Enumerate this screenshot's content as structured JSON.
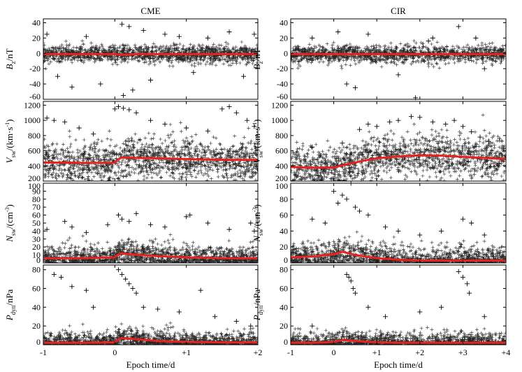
{
  "figure": {
    "column_titles": [
      "CME",
      "CIR"
    ],
    "xlabel": "Epoch time/d",
    "row_labels": [
      {
        "main": "B",
        "sub": "z",
        "tail": "/nT",
        "sup": ""
      },
      {
        "main": "V",
        "sub": "sw",
        "tail": "/(km·s",
        "sup": "-1",
        "close": ")"
      },
      {
        "main": "N",
        "sub": "sw",
        "tail": "/(cm",
        "sup": "-3",
        "close": ")"
      },
      {
        "main": "P",
        "sub": "dyn",
        "tail": "/nPa",
        "sup": ""
      }
    ],
    "colors": {
      "scatter": "#000000",
      "mean_line": "#e8231f"
    }
  },
  "chart_data": [
    {
      "type": "scatter",
      "column": "CME",
      "row": 0,
      "quantity": "Bz (nT)",
      "xlim": [
        -1,
        2
      ],
      "ylim": [
        -60,
        45
      ],
      "xticks": [
        -1,
        0,
        1,
        2
      ],
      "xtick_labels": [
        "-1",
        "0",
        "+1",
        "+2"
      ],
      "yticks": [
        -60,
        -40,
        -20,
        0,
        20,
        40
      ],
      "ytick_labels": [
        "-60",
        "-40",
        "-20",
        "0",
        "20",
        "40"
      ],
      "mean_line": {
        "x": [
          -1,
          -0.5,
          0,
          0.1,
          0.3,
          0.6,
          1,
          1.5,
          2
        ],
        "y": [
          -1,
          -1,
          -1,
          -2,
          -1,
          -1,
          -1,
          -1,
          -1
        ]
      },
      "scatter_core": {
        "center": 0,
        "halfwidth": 10
      },
      "outliers": [
        [
          -0.95,
          25
        ],
        [
          -0.8,
          -30
        ],
        [
          -0.6,
          -44
        ],
        [
          -0.4,
          22
        ],
        [
          -0.2,
          -40
        ],
        [
          0.1,
          38
        ],
        [
          0.12,
          -55
        ],
        [
          0.2,
          35
        ],
        [
          0.25,
          -48
        ],
        [
          0.4,
          30
        ],
        [
          0.5,
          -35
        ],
        [
          0.7,
          25
        ],
        [
          0.9,
          22
        ],
        [
          1.1,
          -25
        ],
        [
          1.3,
          20
        ],
        [
          1.6,
          28
        ],
        [
          1.8,
          -30
        ],
        [
          1.95,
          25
        ]
      ]
    },
    {
      "type": "scatter",
      "column": "CIR",
      "row": 0,
      "quantity": "Bz (nT)",
      "xlim": [
        -1,
        4
      ],
      "ylim": [
        -60,
        45
      ],
      "xticks": [
        -1,
        0,
        1,
        2,
        3,
        4
      ],
      "xtick_labels": [
        "-1",
        "0",
        "+1",
        "+2",
        "+3",
        "+4"
      ],
      "yticks": [
        -60,
        -40,
        -20,
        0,
        20,
        40
      ],
      "ytick_labels": [
        "-60",
        "-40",
        "-20",
        "0",
        "20",
        "40"
      ],
      "mean_line": {
        "x": [
          -1,
          0,
          1,
          2,
          3,
          4
        ],
        "y": [
          -1,
          -1,
          -1,
          -1,
          -1,
          -1
        ]
      },
      "scatter_core": {
        "center": 0,
        "halfwidth": 10
      },
      "outliers": [
        [
          -0.5,
          20
        ],
        [
          0.1,
          28
        ],
        [
          0.3,
          -40
        ],
        [
          0.5,
          -45
        ],
        [
          0.8,
          25
        ],
        [
          1.5,
          -28
        ],
        [
          2.3,
          20
        ],
        [
          2.9,
          35
        ],
        [
          3.3,
          20
        ],
        [
          3.5,
          -20
        ],
        [
          1.9,
          -58
        ],
        [
          2.2,
          16
        ]
      ]
    },
    {
      "type": "scatter",
      "column": "CME",
      "row": 1,
      "quantity": "Vsw (km/s)",
      "xlim": [
        -1,
        2
      ],
      "ylim": [
        200,
        1250
      ],
      "xticks": [
        -1,
        0,
        1,
        2
      ],
      "xtick_labels": [
        "-1",
        "0",
        "+1",
        "+2"
      ],
      "yticks": [
        200,
        400,
        600,
        800,
        1000,
        1200
      ],
      "ytick_labels": [
        "200",
        "400",
        "600",
        "800",
        "1000",
        "1200"
      ],
      "mean_line": {
        "x": [
          -1,
          -0.5,
          0,
          0.05,
          0.1,
          0.3,
          0.6,
          1,
          1.5,
          2
        ],
        "y": [
          445,
          440,
          442,
          490,
          510,
          505,
          500,
          490,
          480,
          478
        ]
      },
      "scatter_core": {
        "center": 450,
        "halfwidth": 230
      },
      "outliers": [
        [
          -0.95,
          1030
        ],
        [
          -0.85,
          1000
        ],
        [
          -0.7,
          980
        ],
        [
          -0.5,
          900
        ],
        [
          -0.3,
          820
        ],
        [
          0.0,
          1150
        ],
        [
          0.05,
          1180
        ],
        [
          0.12,
          1160
        ],
        [
          0.2,
          1140
        ],
        [
          0.3,
          1100
        ],
        [
          0.5,
          1000
        ],
        [
          0.7,
          950
        ],
        [
          1.0,
          900
        ],
        [
          1.3,
          860
        ],
        [
          1.5,
          1150
        ],
        [
          1.6,
          1180
        ],
        [
          1.7,
          1100
        ],
        [
          1.85,
          1000
        ],
        [
          1.95,
          920
        ]
      ]
    },
    {
      "type": "scatter",
      "column": "CIR",
      "row": 1,
      "quantity": "Vsw (km/s)",
      "xlim": [
        -1,
        4
      ],
      "ylim": [
        200,
        1250
      ],
      "xticks": [
        -1,
        0,
        1,
        2,
        3,
        4
      ],
      "xtick_labels": [
        "-1",
        "0",
        "+1",
        "+2",
        "+3",
        "+4"
      ],
      "yticks": [
        200,
        400,
        600,
        800,
        1000,
        1200
      ],
      "ytick_labels": [
        "200",
        "400",
        "600",
        "800",
        "1000",
        "1200"
      ],
      "mean_line": {
        "x": [
          -1,
          -0.5,
          0,
          0.3,
          0.7,
          1,
          1.5,
          2,
          2.5,
          3,
          3.5,
          4
        ],
        "y": [
          385,
          378,
          380,
          420,
          470,
          500,
          525,
          540,
          535,
          520,
          505,
          490
        ]
      },
      "scatter_core": {
        "center": 470,
        "halfwidth": 240
      },
      "outliers": [
        [
          -0.5,
          650
        ],
        [
          0.2,
          700
        ],
        [
          0.6,
          880
        ],
        [
          0.8,
          950
        ],
        [
          1.0,
          920
        ],
        [
          1.3,
          980
        ],
        [
          1.5,
          1000
        ],
        [
          1.8,
          1050
        ],
        [
          2.0,
          1040
        ],
        [
          2.3,
          980
        ],
        [
          2.6,
          950
        ],
        [
          2.8,
          1000
        ],
        [
          3.0,
          920
        ],
        [
          3.2,
          850
        ],
        [
          3.4,
          780
        ],
        [
          3.6,
          720
        ]
      ]
    },
    {
      "type": "scatter",
      "column": "CME",
      "row": 2,
      "quantity": "Nsw (cm^-3)",
      "xlim": [
        -1,
        2
      ],
      "ylim": [
        0,
        100
      ],
      "xticks": [
        -1,
        0,
        1,
        2
      ],
      "xtick_labels": [
        "-1",
        "0",
        "+1",
        "+2"
      ],
      "yticks": [
        0,
        10,
        20,
        30,
        40,
        50,
        60,
        70,
        80,
        90,
        100
      ],
      "ytick_labels": [
        "0",
        "10",
        "20",
        "30",
        "40",
        "50",
        "60",
        "70",
        "80",
        "90",
        "100"
      ],
      "mean_line": {
        "x": [
          -1,
          -0.5,
          0,
          0.05,
          0.1,
          0.2,
          0.5,
          1,
          1.5,
          2
        ],
        "y": [
          6,
          6,
          7,
          11,
          12,
          11,
          9,
          7,
          6,
          6
        ]
      },
      "scatter_core": {
        "center": 10,
        "halfwidth": 14
      },
      "outliers": [
        [
          -0.95,
          42
        ],
        [
          -0.7,
          52
        ],
        [
          -0.6,
          45
        ],
        [
          -0.4,
          38
        ],
        [
          -0.1,
          48
        ],
        [
          0.05,
          60
        ],
        [
          0.1,
          55
        ],
        [
          0.2,
          52
        ],
        [
          0.3,
          62
        ],
        [
          0.5,
          48
        ],
        [
          0.7,
          45
        ],
        [
          1.0,
          58
        ],
        [
          1.05,
          60
        ],
        [
          1.3,
          50
        ],
        [
          1.6,
          42
        ],
        [
          1.9,
          50
        ],
        [
          1.95,
          40
        ]
      ]
    },
    {
      "type": "scatter",
      "column": "CIR",
      "row": 2,
      "quantity": "Nsw (cm^-3)",
      "xlim": [
        -1,
        4
      ],
      "ylim": [
        0,
        100
      ],
      "xticks": [
        -1,
        0,
        1,
        2,
        3,
        4
      ],
      "xtick_labels": [
        "-1",
        "0",
        "+1",
        "+2",
        "+3",
        "+4"
      ],
      "yticks": [
        0,
        20,
        40,
        60,
        80,
        100
      ],
      "ytick_labels": [
        "0",
        "20",
        "40",
        "60",
        "80",
        "100"
      ],
      "mean_line": {
        "x": [
          -1,
          -0.5,
          0,
          0.2,
          0.5,
          1,
          1.5,
          2,
          3,
          4
        ],
        "y": [
          7,
          8,
          11,
          14,
          10,
          6,
          4,
          3,
          3,
          3
        ]
      },
      "scatter_core": {
        "center": 12,
        "halfwidth": 16
      },
      "outliers": [
        [
          -0.5,
          55
        ],
        [
          -0.2,
          50
        ],
        [
          0.0,
          90
        ],
        [
          0.1,
          75
        ],
        [
          0.2,
          85
        ],
        [
          0.3,
          80
        ],
        [
          0.4,
          100
        ],
        [
          0.5,
          70
        ],
        [
          0.6,
          65
        ],
        [
          0.8,
          60
        ],
        [
          1.2,
          45
        ],
        [
          1.5,
          40
        ],
        [
          2.0,
          35
        ],
        [
          2.5,
          40
        ],
        [
          3.0,
          55
        ],
        [
          3.2,
          50
        ],
        [
          3.5,
          35
        ]
      ]
    },
    {
      "type": "scatter",
      "column": "CME",
      "row": 3,
      "quantity": "Pdyn (nPa)",
      "xlim": [
        -1,
        2
      ],
      "ylim": [
        0,
        85
      ],
      "xticks": [
        -1,
        0,
        1,
        2
      ],
      "xtick_labels": [
        "-1",
        "0",
        "+1",
        "+2"
      ],
      "yticks": [
        0,
        20,
        40,
        60,
        80
      ],
      "ytick_labels": [
        "0",
        "20",
        "40",
        "60",
        "80"
      ],
      "mean_line": {
        "x": [
          -1,
          -0.5,
          0,
          0.05,
          0.1,
          0.3,
          0.6,
          1,
          1.5,
          2
        ],
        "y": [
          2,
          2,
          2.5,
          6,
          7,
          6,
          4,
          3,
          2.5,
          2.5
        ]
      },
      "scatter_core": {
        "center": 5,
        "halfwidth": 10
      },
      "outliers": [
        [
          -0.85,
          75
        ],
        [
          -0.75,
          72
        ],
        [
          -0.6,
          62
        ],
        [
          -0.4,
          58
        ],
        [
          -0.3,
          40
        ],
        [
          0.05,
          80
        ],
        [
          0.1,
          75
        ],
        [
          0.15,
          70
        ],
        [
          0.2,
          65
        ],
        [
          0.25,
          60
        ],
        [
          0.3,
          55
        ],
        [
          0.4,
          40
        ],
        [
          0.6,
          38
        ],
        [
          0.9,
          35
        ],
        [
          1.2,
          58
        ],
        [
          1.4,
          30
        ],
        [
          1.7,
          25
        ],
        [
          1.9,
          20
        ]
      ]
    },
    {
      "type": "scatter",
      "column": "CIR",
      "row": 3,
      "quantity": "Pdyn (nPa)",
      "xlim": [
        -1,
        4
      ],
      "ylim": [
        0,
        85
      ],
      "xticks": [
        -1,
        0,
        1,
        2,
        3,
        4
      ],
      "xtick_labels": [
        "-1",
        "0",
        "+1",
        "+2",
        "+3",
        "+4"
      ],
      "yticks": [
        0,
        20,
        40,
        60,
        80
      ],
      "ytick_labels": [
        "0",
        "20",
        "40",
        "60",
        "80"
      ],
      "mean_line": {
        "x": [
          -1,
          -0.5,
          0,
          0.2,
          0.5,
          1,
          1.5,
          2,
          3,
          4
        ],
        "y": [
          2,
          2,
          3,
          5,
          4,
          2.5,
          2,
          2,
          2,
          2
        ]
      },
      "scatter_core": {
        "center": 5,
        "halfwidth": 10
      },
      "outliers": [
        [
          -0.5,
          20
        ],
        [
          0.3,
          75
        ],
        [
          0.35,
          72
        ],
        [
          0.4,
          68
        ],
        [
          0.45,
          60
        ],
        [
          0.5,
          55
        ],
        [
          0.8,
          40
        ],
        [
          1.2,
          30
        ],
        [
          2.0,
          35
        ],
        [
          2.5,
          40
        ],
        [
          2.9,
          78
        ],
        [
          3.0,
          72
        ],
        [
          3.1,
          65
        ],
        [
          3.15,
          55
        ],
        [
          3.5,
          30
        ]
      ]
    }
  ]
}
